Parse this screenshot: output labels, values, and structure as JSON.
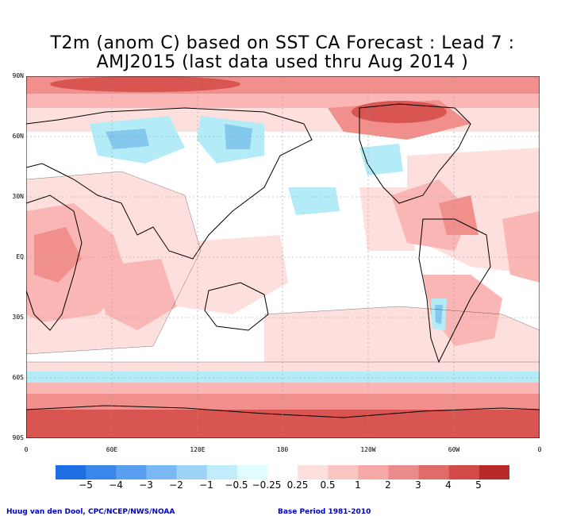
{
  "title": {
    "line1": "T2m (anom C) based on SST CA Forecast : Lead 7 :",
    "line2": "AMJ2015 (last data used thru Aug 2014 )"
  },
  "map": {
    "lat_labels": [
      "90N",
      "60N",
      "30N",
      "EQ",
      "30S",
      "60S",
      "90S"
    ],
    "lon_labels": [
      "0",
      "60E",
      "120E",
      "180",
      "120W",
      "60W",
      "0"
    ],
    "fill_colors": {
      "warm_weak": "#fde0de",
      "warm_light": "#f9b6b4",
      "warm_mid": "#f08f8c",
      "warm_strong": "#d85552",
      "cool_light": "#b3ecf7",
      "cool_mid": "#85c8ee"
    }
  },
  "colorbar": {
    "segments": [
      {
        "color": "#1e6fe3"
      },
      {
        "color": "#3b86ea"
      },
      {
        "color": "#5a9ff0"
      },
      {
        "color": "#7bb7f3"
      },
      {
        "color": "#9dd3f7"
      },
      {
        "color": "#c0ecfb"
      },
      {
        "color": "#e0fcff"
      },
      {
        "color": "#ffffff"
      },
      {
        "color": "#fde0de"
      },
      {
        "color": "#f9c4c2"
      },
      {
        "color": "#f5a8a6"
      },
      {
        "color": "#ec8c8a"
      },
      {
        "color": "#e06c6a"
      },
      {
        "color": "#d24b49"
      },
      {
        "color": "#b82a28"
      }
    ],
    "labels": [
      "−5",
      "−4",
      "−3",
      "−2",
      "−1",
      "−0.5",
      "−0.25",
      "0.25",
      "0.5",
      "1",
      "2",
      "3",
      "4",
      "5"
    ]
  },
  "credits": {
    "left": "Huug van den Dool, CPC/NCEP/NWS/NOAA",
    "right": "Base Period 1981-2010"
  }
}
